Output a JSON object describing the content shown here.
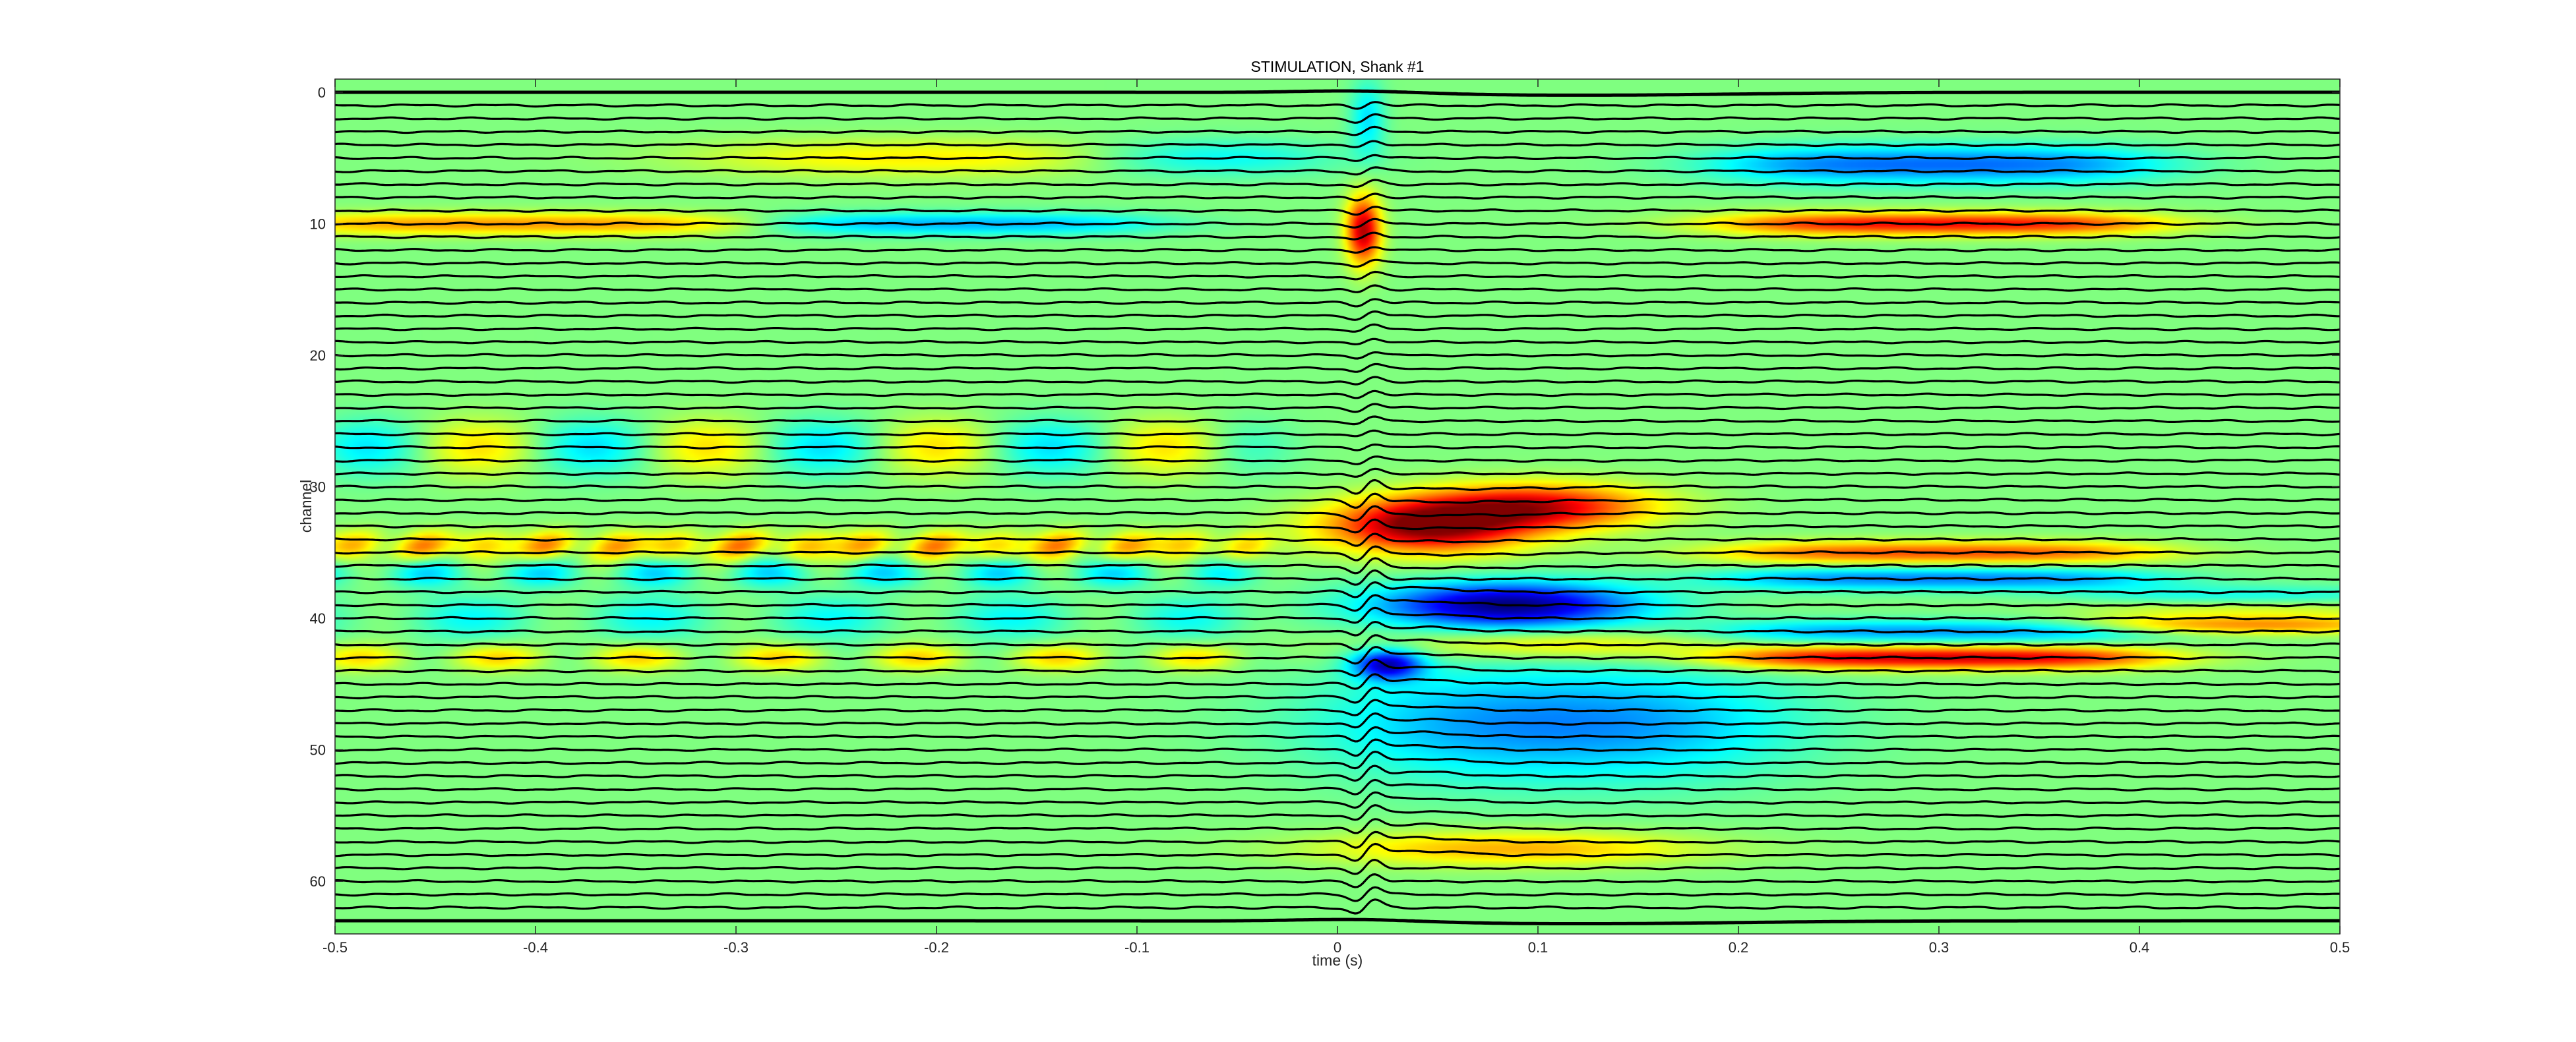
{
  "chart_data": {
    "type": "heatmap",
    "title": "STIMULATION, Shank #1",
    "xlabel": "time (s)",
    "ylabel": "channel",
    "xlim": [
      -0.5,
      0.5
    ],
    "ylim": [
      -1,
      64
    ],
    "y_reversed": true,
    "x_ticks": [
      "-0.5",
      "-0.4",
      "-0.3",
      "-0.2",
      "-0.1",
      "0",
      "0.1",
      "0.2",
      "0.3",
      "0.4",
      "0.5"
    ],
    "y_ticks": [
      "0",
      "10",
      "20",
      "30",
      "40",
      "50",
      "60"
    ],
    "channel_count": 64,
    "stimulus_time": 0.01,
    "grid": false,
    "colormap": "jet",
    "trace_color": "#000000",
    "background_color": "#80f07a",
    "features": [
      {
        "channels": [
          34,
          35
        ],
        "t_start": -0.5,
        "t_end": -0.05,
        "sign": "positive"
      },
      {
        "channels": [
          30,
          36
        ],
        "t_start": 0.01,
        "t_end": 0.15,
        "sign": "positive",
        "peak": "strong"
      },
      {
        "channels": [
          38,
          40
        ],
        "t_start": 0.02,
        "t_end": 0.2,
        "sign": "negative",
        "peak": "strong"
      },
      {
        "channels": [
          43,
          44
        ],
        "t_start": 0.02,
        "t_end": 0.06,
        "sign": "negative"
      },
      {
        "channels": [
          45,
          52
        ],
        "t_start": 0.02,
        "t_end": 0.2,
        "sign": "negative"
      },
      {
        "channels": [
          10,
          10
        ],
        "t_start": 0.2,
        "t_end": 0.4,
        "sign": "positive"
      },
      {
        "channels": [
          35,
          35
        ],
        "t_start": 0.2,
        "t_end": 0.4,
        "sign": "positive"
      },
      {
        "channels": [
          43,
          43
        ],
        "t_start": 0.2,
        "t_end": 0.4,
        "sign": "positive"
      },
      {
        "channels": [
          5,
          7
        ],
        "t_start": 0.2,
        "t_end": 0.4,
        "sign": "negative"
      },
      {
        "channels": [
          37,
          37
        ],
        "t_start": 0.2,
        "t_end": 0.4,
        "sign": "negative"
      }
    ]
  }
}
